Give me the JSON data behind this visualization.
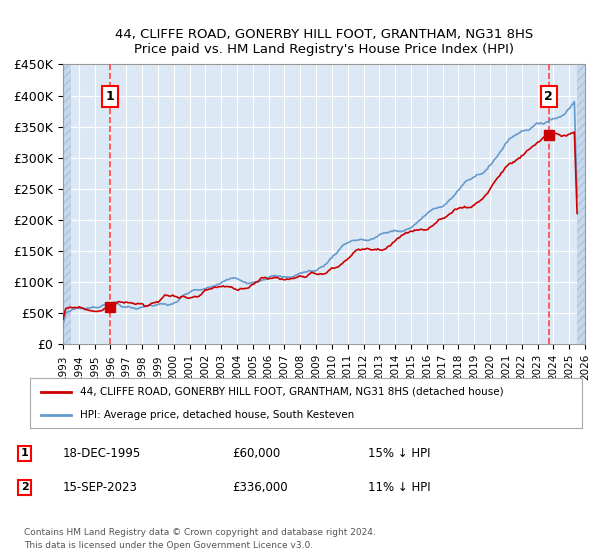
{
  "title1": "44, CLIFFE ROAD, GONERBY HILL FOOT, GRANTHAM, NG31 8HS",
  "title2": "Price paid vs. HM Land Registry's House Price Index (HPI)",
  "ylim": [
    0,
    450000
  ],
  "ytick_values": [
    0,
    50000,
    100000,
    150000,
    200000,
    250000,
    300000,
    350000,
    400000,
    450000
  ],
  "ytick_labels": [
    "£0",
    "£50K",
    "£100K",
    "£150K",
    "£200K",
    "£250K",
    "£300K",
    "£350K",
    "£400K",
    "£450K"
  ],
  "bg_color": "#dce9f5",
  "grid_color": "#ffffff",
  "sale1_date": 1995.96,
  "sale1_price": 60000,
  "sale1_label": "1",
  "sale2_date": 2023.71,
  "sale2_price": 336000,
  "sale2_label": "2",
  "red_line_color": "#cc0000",
  "blue_line_color": "#6699cc",
  "marker_color": "#cc0000",
  "vline_color": "#ff4444",
  "legend_label1": "44, CLIFFE ROAD, GONERBY HILL FOOT, GRANTHAM, NG31 8HS (detached house)",
  "legend_label2": "HPI: Average price, detached house, South Kesteven",
  "annotation1_date": "18-DEC-1995",
  "annotation1_price": "£60,000",
  "annotation1_hpi": "15% ↓ HPI",
  "annotation2_date": "15-SEP-2023",
  "annotation2_price": "£336,000",
  "annotation2_hpi": "11% ↓ HPI",
  "footnote": "Contains HM Land Registry data © Crown copyright and database right 2024.\nThis data is licensed under the Open Government Licence v3.0.",
  "xmin": 1993.0,
  "xmax": 2026.0,
  "hatch_left_end": 1993.5,
  "hatch_right_start": 2025.5
}
